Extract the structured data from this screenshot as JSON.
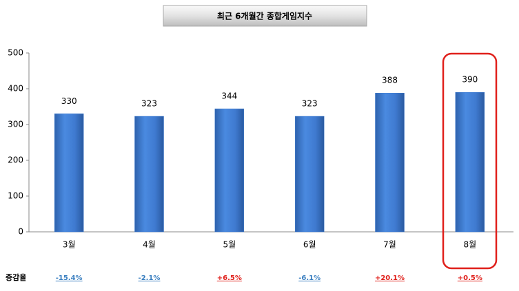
{
  "chart_data": {
    "type": "bar",
    "title": "최근 6개월간 종합게임지수",
    "categories": [
      "3월",
      "4월",
      "5월",
      "6월",
      "7월",
      "8월"
    ],
    "values": [
      330,
      323,
      344,
      323,
      388,
      390
    ],
    "color": "#3d7bd0",
    "ylim": [
      0,
      500
    ],
    "yticks": [
      0,
      100,
      200,
      300,
      400,
      500
    ],
    "grid": false,
    "change_row": {
      "label": "증감율",
      "values": [
        "-15.4%",
        "-2.1%",
        "+6.5%",
        "-6.1%",
        "+20.1%",
        "+0.5%"
      ],
      "colors": [
        "#3a7fc0",
        "#3a7fc0",
        "#e0201b",
        "#3a7fc0",
        "#e0201b",
        "#e0201b"
      ]
    }
  }
}
